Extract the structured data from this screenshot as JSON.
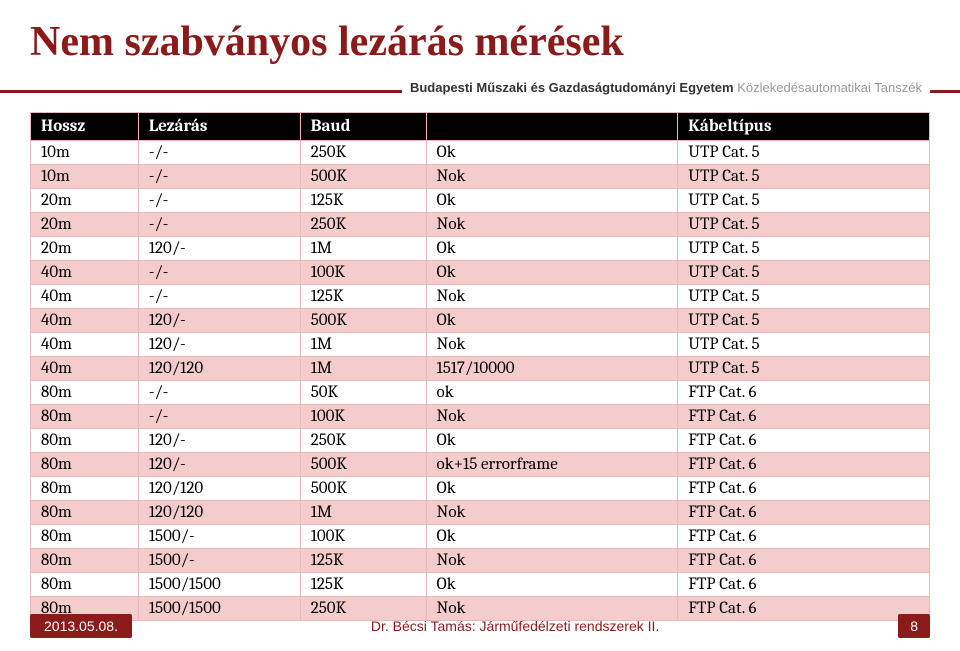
{
  "title": "Nem szabványos lezárás mérések",
  "divider": {
    "bold": "Budapesti Műszaki és Gazdaságtudományi Egyetem",
    "light": "Közlekedésautomatikai Tanszék"
  },
  "table": {
    "headers": [
      "Hossz",
      "Lezárás",
      "Baud",
      " ",
      "Kábeltípus"
    ],
    "rows": [
      [
        "10m",
        "-/-",
        "250K",
        "Ok",
        "UTP Cat. 5"
      ],
      [
        "10m",
        "-/-",
        "500K",
        "Nok",
        "UTP Cat. 5"
      ],
      [
        "20m",
        "-/-",
        "125K",
        "Ok",
        "UTP Cat. 5"
      ],
      [
        "20m",
        "-/-",
        "250K",
        "Nok",
        "UTP Cat. 5"
      ],
      [
        "20m",
        "120/-",
        "1M",
        "Ok",
        "UTP Cat. 5"
      ],
      [
        "40m",
        "-/-",
        "100K",
        "Ok",
        "UTP Cat. 5"
      ],
      [
        "40m",
        "-/-",
        "125K",
        "Nok",
        "UTP Cat. 5"
      ],
      [
        "40m",
        "120/-",
        "500K",
        "Ok",
        "UTP Cat. 5"
      ],
      [
        "40m",
        "120/-",
        "1M",
        "Nok",
        "UTP Cat. 5"
      ],
      [
        "40m",
        "120/120",
        "1M",
        "1517/10000",
        "UTP Cat. 5"
      ],
      [
        "80m",
        "-/-",
        "50K",
        "ok",
        "FTP Cat. 6"
      ],
      [
        "80m",
        "-/-",
        "100K",
        "Nok",
        "FTP Cat. 6"
      ],
      [
        "80m",
        "120/-",
        "250K",
        "Ok",
        "FTP Cat. 6"
      ],
      [
        "80m",
        "120/-",
        "500K",
        "ok+15 errorframe",
        "FTP Cat. 6"
      ],
      [
        "80m",
        "120/120",
        "500K",
        "Ok",
        "FTP Cat. 6"
      ],
      [
        "80m",
        "120/120",
        "1M",
        "Nok",
        "FTP Cat. 6"
      ],
      [
        "80m",
        "1500/-",
        "100K",
        "Ok",
        "FTP Cat. 6"
      ],
      [
        "80m",
        "1500/-",
        "125K",
        "Nok",
        "FTP Cat. 6"
      ],
      [
        "80m",
        "1500/1500",
        "125K",
        "Ok",
        "FTP Cat. 6"
      ],
      [
        "80m",
        "1500/1500",
        "250K",
        "Nok",
        "FTP Cat. 6"
      ]
    ],
    "col_widths": [
      "12%",
      "18%",
      "14%",
      "28%",
      "28%"
    ],
    "header_bg": "#000000",
    "header_color": "#ffffff",
    "odd_bg": "#ffffff",
    "even_bg": "#f4cccc",
    "border_color": "#e8b8b8"
  },
  "footer": {
    "date": "2013.05.08.",
    "center": "Dr. Bécsi Tamás: Járműfedélzeti rendszerek II.",
    "page": "8"
  },
  "colors": {
    "accent": "#8b1a1a"
  }
}
